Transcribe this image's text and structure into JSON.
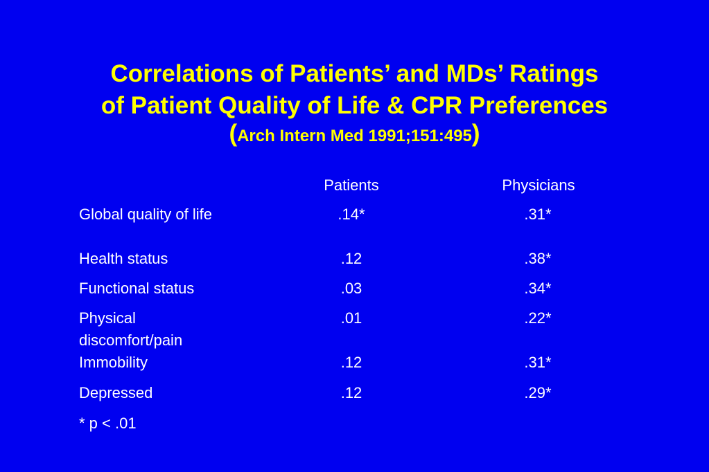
{
  "title": {
    "line1": "Correlations of Patients’ and MDs’ Ratings",
    "line2": "of Patient Quality of Life & CPR Preferences",
    "citation_open": "(",
    "citation": "Arch Intern Med 1991;151:495",
    "citation_close": ")"
  },
  "table": {
    "headers": {
      "patients": "Patients",
      "physicians": "Physicians"
    },
    "rows": [
      {
        "label": "Global quality of life",
        "patients": ".14*",
        "physicians": ".31*"
      },
      {
        "label": "Health status",
        "patients": ".12",
        "physicians": ".38*"
      },
      {
        "label": "Functional status",
        "patients": ".03",
        "physicians": ".34*"
      },
      {
        "label": "Physical discomfort/pain",
        "patients": ".01",
        "physicians": ".22*"
      },
      {
        "label": "Immobility",
        "patients": ".12",
        "physicians": ".31*"
      },
      {
        "label": "Depressed",
        "patients": ".12",
        "physicians": ".29*"
      }
    ],
    "footnote": "* p < .01"
  },
  "colors": {
    "background": "#0000f0",
    "title": "#ffff00",
    "text": "#ffffff"
  }
}
